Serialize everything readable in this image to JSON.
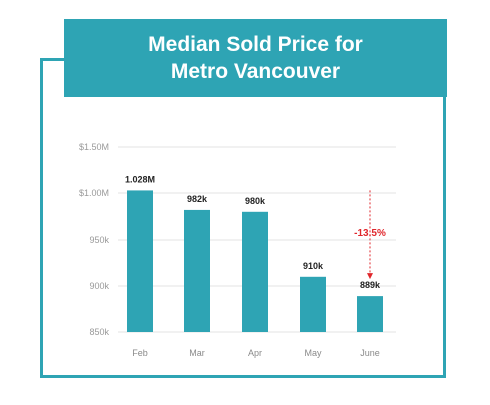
{
  "chart_data": {
    "type": "bar",
    "title_lines": [
      "Median Sold Price for",
      "Metro Vancouver"
    ],
    "categories": [
      "Feb",
      "Mar",
      "Apr",
      "May",
      "June"
    ],
    "values": [
      1.028,
      0.982,
      0.98,
      0.91,
      0.889
    ],
    "value_labels": [
      "1.028M",
      "982k",
      "980k",
      "910k",
      "889k"
    ],
    "y_ticks": [
      "$1.50M",
      "$1.00M",
      "950k",
      "900k",
      "850k"
    ],
    "annotation": {
      "text": "-13.5%",
      "color": "#e0262b"
    },
    "bar_color": "#2ea4b4",
    "grid": true,
    "xlabel": "",
    "ylabel": ""
  }
}
